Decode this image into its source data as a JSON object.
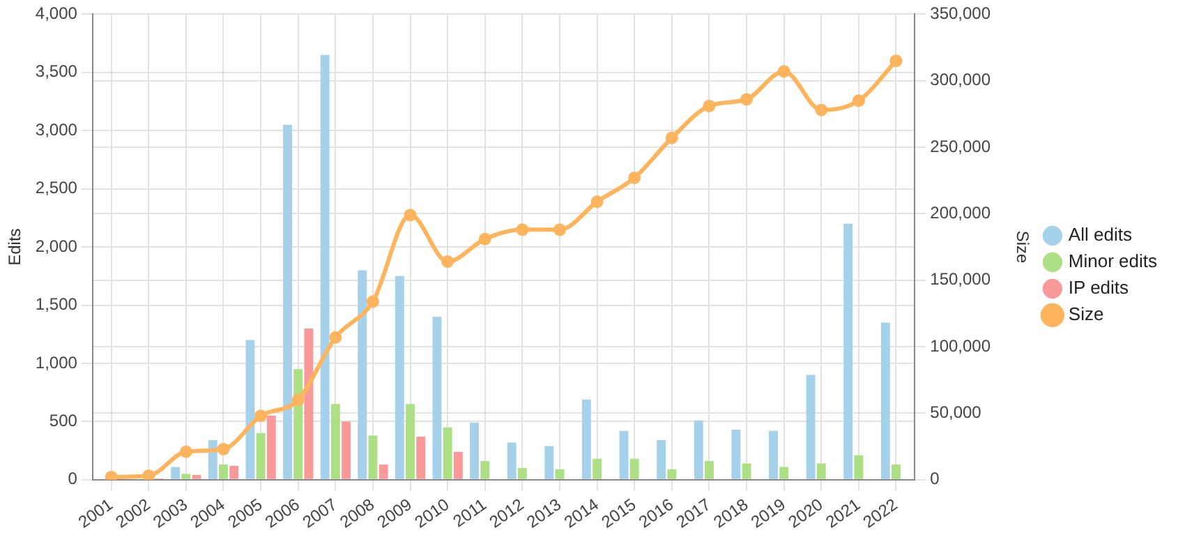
{
  "chart_data": {
    "type": "bar",
    "xlabel": null,
    "ylabel": "Edits",
    "y2label": "Size",
    "categories": [
      "2001",
      "2002",
      "2003",
      "2004",
      "2005",
      "2006",
      "2007",
      "2008",
      "2009",
      "2010",
      "2011",
      "2012",
      "2013",
      "2014",
      "2015",
      "2016",
      "2017",
      "2018",
      "2019",
      "2020",
      "2021",
      "2022"
    ],
    "series": [
      {
        "name": "All edits",
        "color": "#a6d1ea",
        "values": [
          0,
          null,
          110,
          340,
          1200,
          3050,
          3650,
          1800,
          1750,
          1400,
          490,
          320,
          290,
          690,
          420,
          340,
          510,
          430,
          420,
          900,
          2200,
          1350
        ]
      },
      {
        "name": "Minor edits",
        "color": "#addf84",
        "values": [
          0,
          null,
          50,
          130,
          400,
          950,
          650,
          380,
          650,
          450,
          160,
          100,
          90,
          180,
          180,
          90,
          160,
          140,
          110,
          140,
          210,
          130
        ]
      },
      {
        "name": "IP edits",
        "color": "#fa9999",
        "values": [
          0,
          10,
          40,
          120,
          550,
          1300,
          500,
          130,
          370,
          240,
          0,
          0,
          0,
          0,
          0,
          0,
          0,
          0,
          0,
          0,
          0,
          0
        ]
      },
      {
        "name": "Size",
        "type": "line",
        "axis": "y2",
        "color": "#fdb45c",
        "values": [
          2000,
          3000,
          21000,
          23000,
          48000,
          60000,
          107000,
          134000,
          199000,
          164000,
          181000,
          188000,
          188000,
          209000,
          227000,
          257000,
          281000,
          286000,
          307000,
          278000,
          285000,
          315000
        ]
      }
    ],
    "ylim": [
      0,
      4000
    ],
    "yticks": [
      {
        "value": 0,
        "label": "0"
      },
      {
        "value": 500,
        "label": "500"
      },
      {
        "value": 1000,
        "label": "1,000"
      },
      {
        "value": 1500,
        "label": "1,500"
      },
      {
        "value": 2000,
        "label": "2,000"
      },
      {
        "value": 2500,
        "label": "2,500"
      },
      {
        "value": 3000,
        "label": "3,000"
      },
      {
        "value": 3500,
        "label": "3,500"
      },
      {
        "value": 4000,
        "label": "4,000"
      }
    ],
    "y2lim": [
      0,
      350000
    ],
    "y2ticks": [
      {
        "value": 0,
        "label": "0"
      },
      {
        "value": 50000,
        "label": "50,000"
      },
      {
        "value": 100000,
        "label": "100,000"
      },
      {
        "value": 150000,
        "label": "150,000"
      },
      {
        "value": 200000,
        "label": "200,000"
      },
      {
        "value": 250000,
        "label": "250,000"
      },
      {
        "value": 300000,
        "label": "300,000"
      },
      {
        "value": 350000,
        "label": "350,000"
      }
    ],
    "grid": true,
    "legend": "right",
    "marker": "circle"
  }
}
